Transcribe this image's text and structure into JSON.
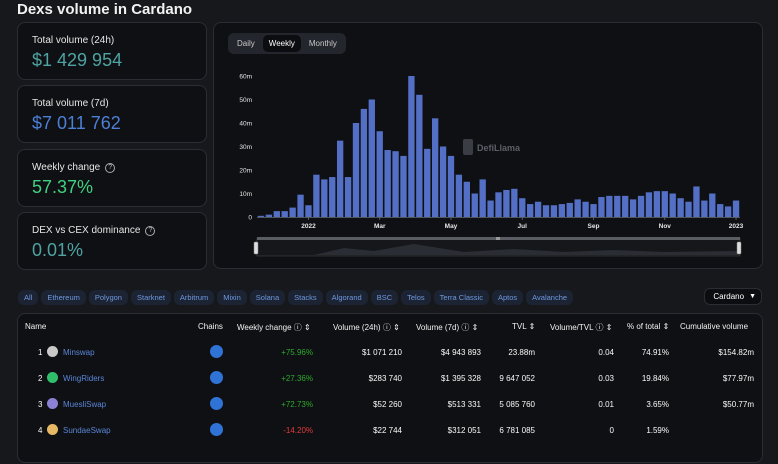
{
  "page_title": "Dexs volume in Cardano",
  "stats": [
    {
      "label": "Total volume (24h)",
      "value": "$1 429 954",
      "color": "#4fa3a3",
      "help": false
    },
    {
      "label": "Total volume (7d)",
      "value": "$7 011 762",
      "color": "#4d7fd6",
      "help": false
    },
    {
      "label": "Weekly change",
      "value": "57.37%",
      "color": "#3fd081",
      "help": true
    },
    {
      "label": "DEX vs CEX dominance",
      "value": "0.01%",
      "color": "#4fa3a3",
      "help": true
    }
  ],
  "period_tabs": {
    "daily": "Daily",
    "weekly": "Weekly",
    "monthly": "Monthly",
    "active": "Weekly"
  },
  "watermark": "DefiLlama",
  "chart_data": {
    "type": "bar",
    "y_unit": "USD",
    "y_ticks": [
      "0",
      "10m",
      "20m",
      "30m",
      "40m",
      "50m",
      "60m"
    ],
    "ylim": [
      0,
      60000000
    ],
    "x_ticks": [
      "2022",
      "Mar",
      "May",
      "Jul",
      "Sep",
      "Nov",
      "2023"
    ],
    "x_tick_index": [
      6,
      15,
      24,
      33,
      42,
      51,
      60
    ],
    "values": [
      0.5,
      1,
      2.5,
      2.5,
      4,
      9.5,
      5,
      18,
      16,
      17,
      32.5,
      17,
      40,
      46,
      50,
      36.5,
      28.5,
      28,
      26,
      60,
      52,
      29,
      42,
      30,
      26,
      18,
      15,
      10,
      16,
      7,
      10.5,
      11.5,
      12,
      8,
      5.5,
      6.5,
      5,
      5,
      5.5,
      6,
      7.5,
      6.5,
      5.5,
      8.5,
      9,
      9,
      9,
      7.5,
      9,
      10.5,
      11,
      11,
      10,
      8,
      6.5,
      13,
      7,
      10,
      5.5,
      4.5,
      7
    ],
    "color": "#5470c6",
    "grid": false
  },
  "chains": [
    "All",
    "Ethereum",
    "Polygon",
    "Starknet",
    "Arbitrum",
    "Mixin",
    "Solana",
    "Stacks",
    "Algorand",
    "BSC",
    "Telos",
    "Terra Classic",
    "Aptos",
    "Avalanche"
  ],
  "chain_select": "Cardano",
  "table": {
    "headers": {
      "name": "Name",
      "chains": "Chains",
      "weekly_change": "Weekly change",
      "vol24": "Volume (24h)",
      "vol7": "Volume (7d)",
      "tvl": "TVL",
      "vol_tvl": "Volume/TVL",
      "pct": "% of total",
      "cum": "Cumulative volume"
    },
    "rows": [
      {
        "rank": "1",
        "name": "Minswap",
        "logo_color": "#c9c9c9",
        "weekly_change": "+75.96%",
        "wc_sign": "pos",
        "vol24": "$1 071 210",
        "vol7": "$4 943 893",
        "tvl": "23.88m",
        "vol_tvl": "0.04",
        "pct": "74.91%",
        "cum": "$154.82m"
      },
      {
        "rank": "2",
        "name": "WingRiders",
        "logo_color": "#2fbf6b",
        "weekly_change": "+27.36%",
        "wc_sign": "pos",
        "vol24": "$283 740",
        "vol7": "$1 395 328",
        "tvl": "9 647 052",
        "vol_tvl": "0.03",
        "pct": "19.84%",
        "cum": "$77.97m"
      },
      {
        "rank": "3",
        "name": "MuesliSwap",
        "logo_color": "#8b82d6",
        "weekly_change": "+72.73%",
        "wc_sign": "pos",
        "vol24": "$52 260",
        "vol7": "$513 331",
        "tvl": "5 085 760",
        "vol_tvl": "0.01",
        "pct": "3.65%",
        "cum": "$50.77m"
      },
      {
        "rank": "4",
        "name": "SundaeSwap",
        "logo_color": "#e6b866",
        "weekly_change": "-14.20%",
        "wc_sign": "neg",
        "vol24": "$22 744",
        "vol7": "$312 051",
        "tvl": "6 781 085",
        "vol_tvl": "0",
        "pct": "1.59%",
        "cum": ""
      }
    ]
  }
}
